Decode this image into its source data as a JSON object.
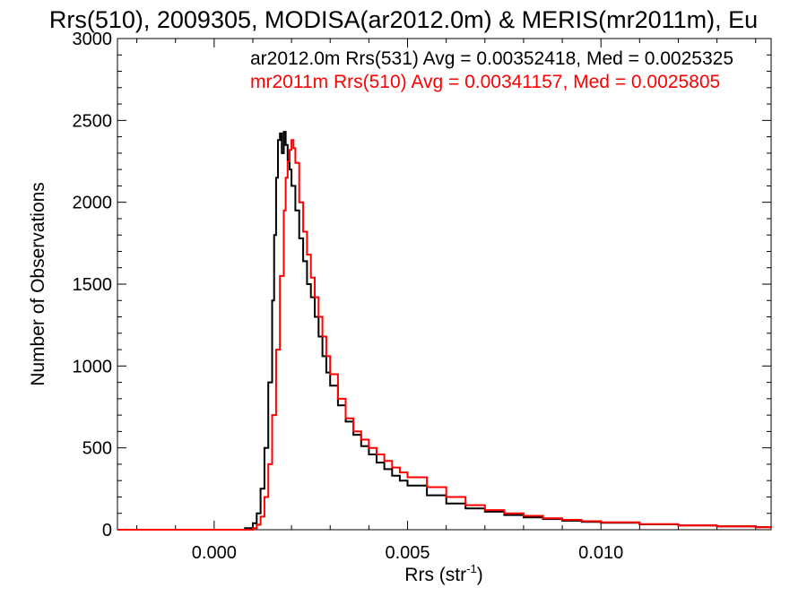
{
  "chart_data": {
    "type": "line",
    "title": "Rrs(510), 2009305, MODISA(ar2012.0m) & MERIS(mr2011m), Eu",
    "xlabel": "Rrs (str",
    "xlabel_sup": "-1",
    "xlabel_close": ")",
    "ylabel": "Number of Observations",
    "xlim": [
      -0.0025,
      0.0144
    ],
    "ylim": [
      0,
      3000
    ],
    "xticks": [
      0.0,
      0.005,
      0.01
    ],
    "xtick_labels": [
      "0.000",
      "0.005",
      "0.010"
    ],
    "yticks": [
      0,
      500,
      1000,
      1500,
      2000,
      2500,
      3000
    ],
    "ytick_labels": [
      "0",
      "500",
      "1000",
      "1500",
      "2000",
      "2500",
      "3000"
    ],
    "grid": false,
    "legend_placement": "top-right",
    "series": [
      {
        "name": "ar2012.0m Rrs(531) Avg = 0.00352418, Med = 0.0025325",
        "color": "#000000",
        "x": [
          -0.0025,
          0.0005,
          0.0008,
          0.001,
          0.0011,
          0.0012,
          0.0013,
          0.0014,
          0.0015,
          0.00155,
          0.0016,
          0.00165,
          0.0017,
          0.00175,
          0.0018,
          0.00185,
          0.0019,
          0.00195,
          0.002,
          0.0021,
          0.0022,
          0.0023,
          0.0024,
          0.0025,
          0.0026,
          0.0027,
          0.0028,
          0.0029,
          0.003,
          0.0032,
          0.0034,
          0.0036,
          0.0038,
          0.004,
          0.0042,
          0.0044,
          0.0046,
          0.0048,
          0.005,
          0.0055,
          0.006,
          0.0065,
          0.007,
          0.0075,
          0.008,
          0.0085,
          0.009,
          0.0095,
          0.01,
          0.011,
          0.012,
          0.013,
          0.014,
          0.0144
        ],
        "y": [
          0,
          0,
          10,
          40,
          100,
          250,
          500,
          900,
          1400,
          1800,
          2150,
          2380,
          2420,
          2300,
          2430,
          2350,
          2260,
          2200,
          2100,
          1950,
          1780,
          1640,
          1500,
          1420,
          1300,
          1180,
          1060,
          960,
          880,
          760,
          660,
          580,
          510,
          460,
          410,
          370,
          330,
          300,
          270,
          210,
          160,
          130,
          110,
          90,
          75,
          65,
          55,
          48,
          42,
          33,
          26,
          21,
          16,
          14
        ]
      },
      {
        "name": "mr2011m Rrs(510) Avg = 0.00341157, Med = 0.0025805",
        "color": "#ff0000",
        "x": [
          -0.0025,
          0.0008,
          0.001,
          0.0011,
          0.0012,
          0.0013,
          0.0014,
          0.0015,
          0.0016,
          0.0017,
          0.0018,
          0.00185,
          0.0019,
          0.00195,
          0.002,
          0.00205,
          0.0021,
          0.0022,
          0.0023,
          0.0024,
          0.0025,
          0.0026,
          0.0027,
          0.0028,
          0.0029,
          0.003,
          0.0032,
          0.0034,
          0.0036,
          0.0038,
          0.004,
          0.0042,
          0.0044,
          0.0046,
          0.0048,
          0.005,
          0.0055,
          0.006,
          0.0065,
          0.007,
          0.0075,
          0.008,
          0.0085,
          0.009,
          0.0095,
          0.01,
          0.011,
          0.012,
          0.013,
          0.014,
          0.0144
        ],
        "y": [
          0,
          0,
          10,
          30,
          80,
          200,
          400,
          700,
          1100,
          1550,
          1950,
          2150,
          2250,
          2320,
          2380,
          2330,
          2240,
          2000,
          1820,
          1680,
          1540,
          1420,
          1300,
          1180,
          1060,
          950,
          800,
          680,
          600,
          550,
          500,
          460,
          420,
          380,
          350,
          320,
          260,
          200,
          150,
          120,
          100,
          85,
          70,
          60,
          52,
          45,
          34,
          26,
          20,
          15,
          12
        ]
      }
    ]
  }
}
